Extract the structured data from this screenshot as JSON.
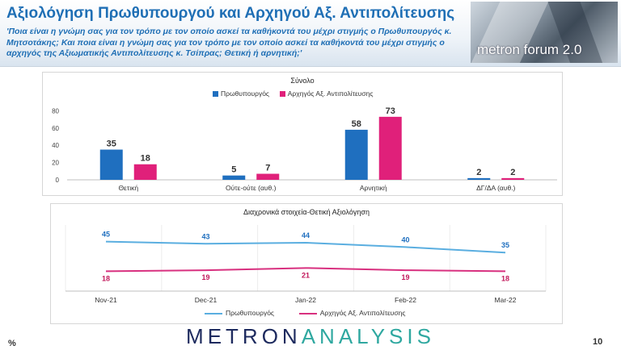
{
  "header": {
    "title": "Αξιολόγηση Πρωθυπουργού και Αρχηγού Αξ. Αντιπολίτευσης",
    "subtitle": "'Ποια είναι η γνώμη σας για τον τρόπο με τον οποίο ασκεί τα καθήκοντά του μέχρι στιγμής ο Πρωθυπουργός κ. Μητσοτάκης; Και ποια είναι η γνώμη σας για τον τρόπο με τον οποίο ασκεί τα καθήκοντά του μέχρι στιγμής ο αρχηγός της Αξιωματικής Αντιπολίτευσης κ. Τσίπρας; Θετική ή αρνητική;'",
    "logo_text": "metron forum 2.0"
  },
  "colors": {
    "pm": "#1f6fbf",
    "opposition": "#e0207a",
    "pm_line": "#5aaee0",
    "opposition_line": "#d8307f",
    "title": "#1f6fb5"
  },
  "chart_data": [
    {
      "type": "bar",
      "title": "Σύνολο",
      "categories": [
        "Θετική",
        "Ούτε-ούτε (αυθ.)",
        "Αρνητική",
        "ΔΓ/ΔΑ (αυθ.)"
      ],
      "series": [
        {
          "name": "Πρωθυπουργός",
          "values": [
            35,
            5,
            58,
            2
          ]
        },
        {
          "name": "Αρχηγός Αξ. Αντιπολίτευσης",
          "values": [
            18,
            7,
            73,
            2
          ]
        }
      ],
      "yticks": [
        "0",
        "20",
        "40",
        "60",
        "80"
      ],
      "ylim": [
        0,
        85
      ],
      "legend": "top"
    },
    {
      "type": "line",
      "title": "Διαχρονικά στοιχεία-Θετική Αξιολόγηση",
      "categories": [
        "Nov-21",
        "Dec-21",
        "Jan-22",
        "Feb-22",
        "Mar-22"
      ],
      "series": [
        {
          "name": "Πρωθυπουργός",
          "values": [
            45,
            43,
            44,
            40,
            35
          ]
        },
        {
          "name": "Αρχηγός Αξ. Αντιπολίτευσης",
          "values": [
            18,
            19,
            21,
            19,
            18
          ]
        }
      ],
      "ylim": [
        0,
        60
      ],
      "legend": "bottom"
    }
  ],
  "footer": {
    "percent_sign": "%",
    "brand_part1": "METRON",
    "brand_part2": "ANALYSIS",
    "page_number": "10"
  }
}
